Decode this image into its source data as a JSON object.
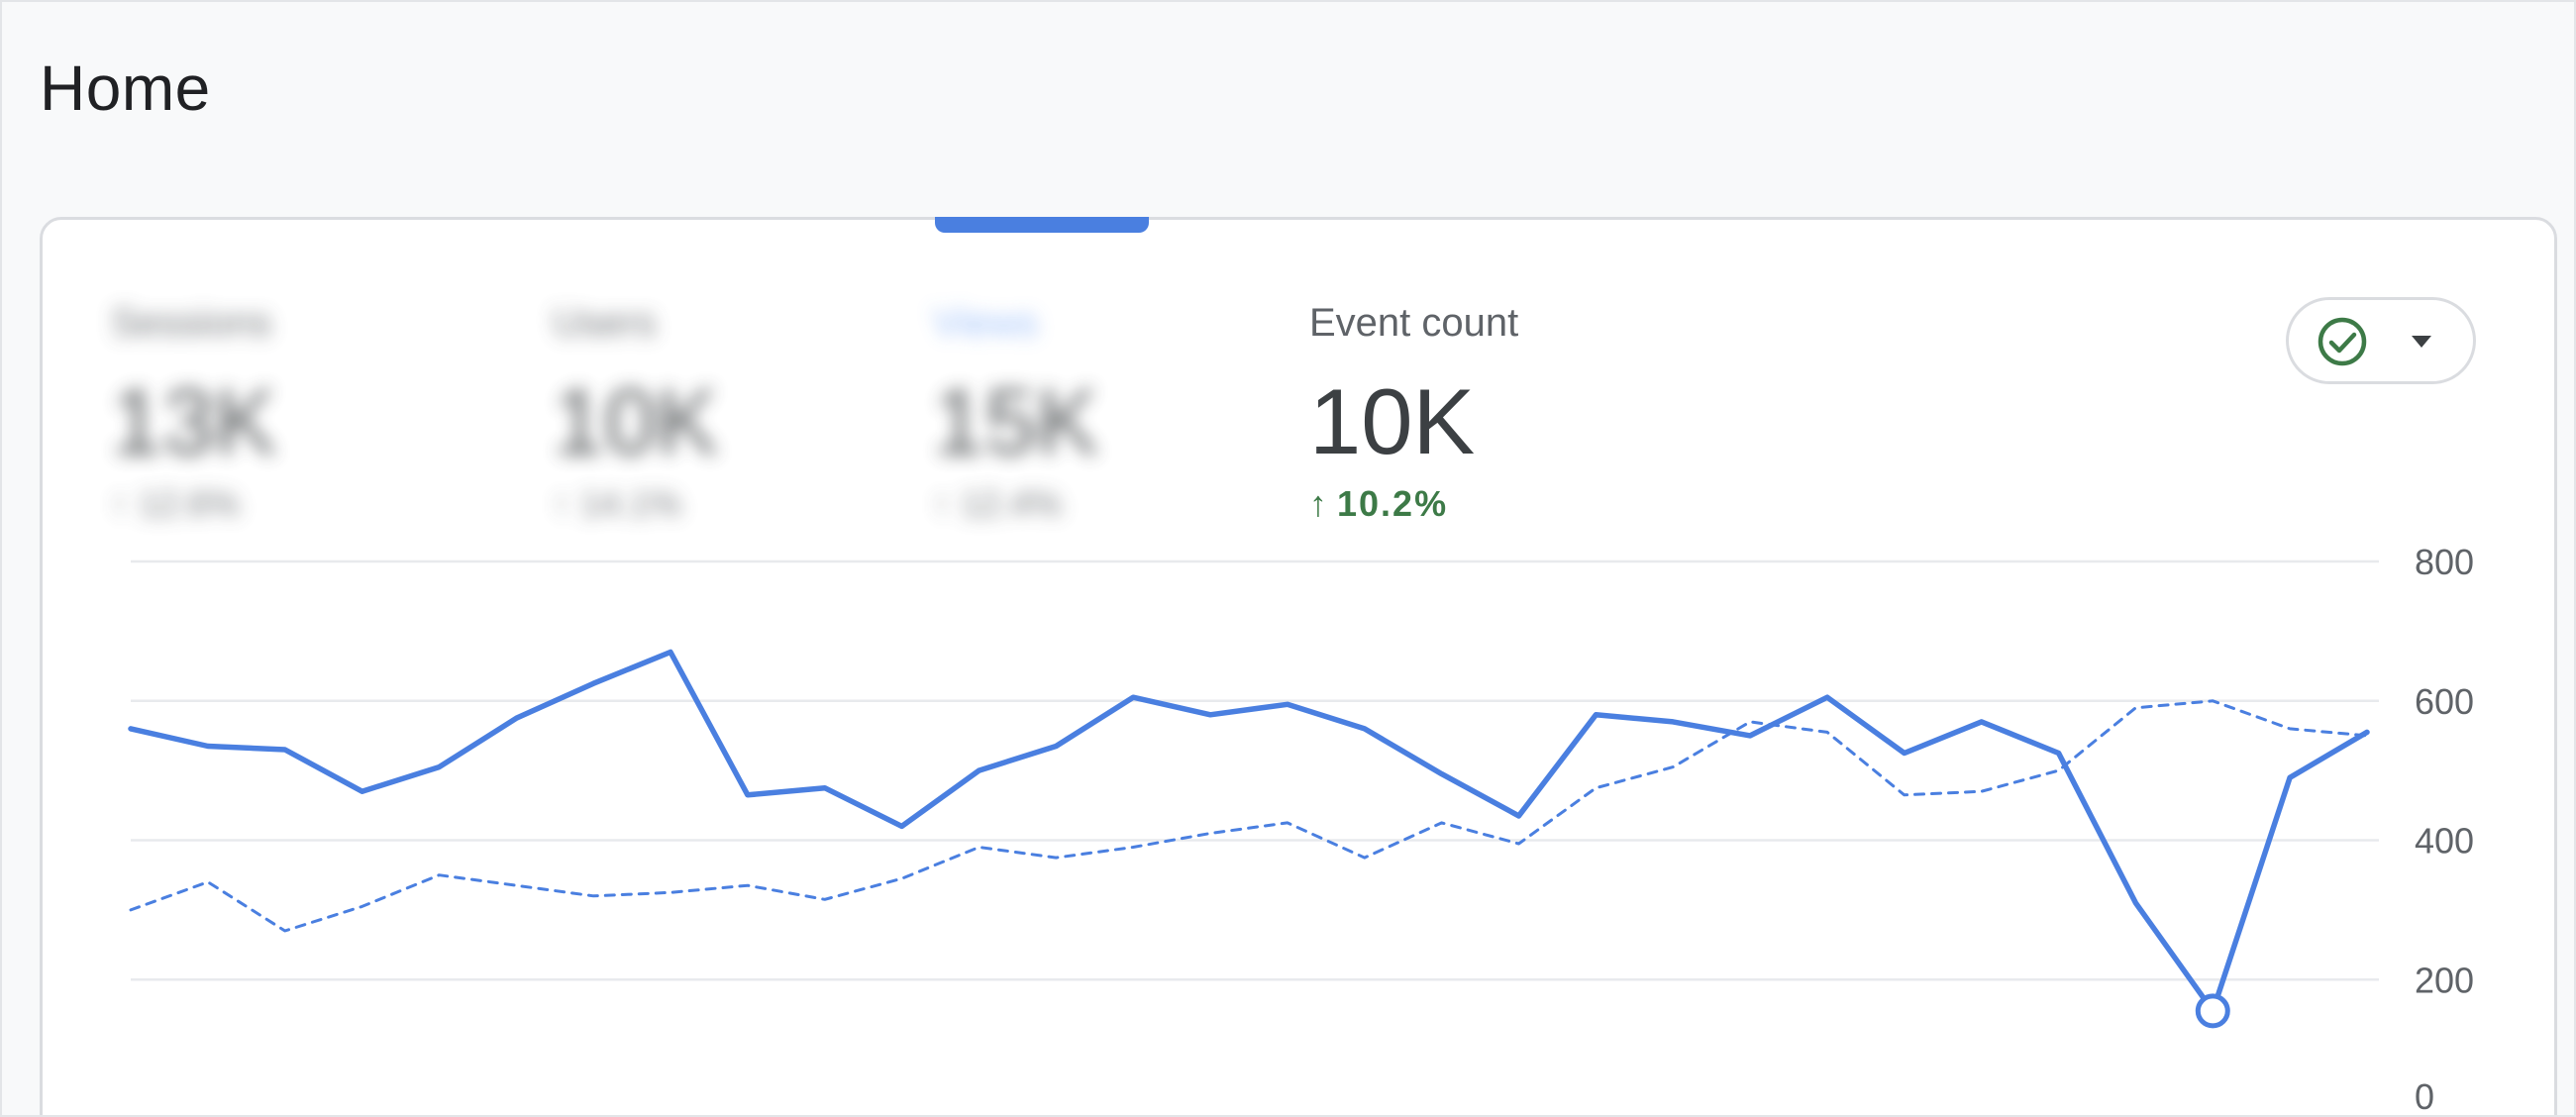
{
  "header": {
    "title": "Home"
  },
  "metrics": [
    {
      "label": "Sessions",
      "value": "13K",
      "change": "↑ 12.6%"
    },
    {
      "label": "Users",
      "value": "10K",
      "change": "↑ 14.1%"
    },
    {
      "label": "Views",
      "value": "15K",
      "change": "↑ 12.4%"
    },
    {
      "label": "Event count",
      "value": "10K",
      "change": "10.2%"
    }
  ],
  "compare_button": {
    "icon": "check-circle-icon",
    "dropdown_icon": "chevron-down-icon"
  },
  "colors": {
    "primary_series": "#4a7fe0",
    "comparison_series": "#4a7fe0",
    "positive_change": "#3d7a47",
    "gridline": "#e8eaed"
  },
  "chart_data": {
    "type": "line",
    "title": "",
    "xlabel": "",
    "ylabel": "",
    "ylim": [
      0,
      800
    ],
    "y_ticks": [
      "800",
      "600",
      "400",
      "200",
      "0"
    ],
    "grid": true,
    "y_axis_position": "right",
    "series": [
      {
        "style": "solid",
        "values": [
          560,
          535,
          530,
          470,
          505,
          575,
          625,
          670,
          465,
          475,
          420,
          500,
          535,
          605,
          580,
          595,
          560,
          495,
          435,
          580,
          570,
          550,
          605,
          525,
          570,
          525,
          310,
          155,
          490,
          555
        ],
        "highlighted_point_index": 27
      },
      {
        "style": "dashed",
        "values": [
          300,
          340,
          270,
          305,
          350,
          335,
          320,
          325,
          335,
          315,
          345,
          390,
          375,
          390,
          410,
          425,
          375,
          425,
          395,
          475,
          505,
          570,
          555,
          465,
          470,
          500,
          590,
          600,
          560,
          550
        ]
      }
    ]
  }
}
